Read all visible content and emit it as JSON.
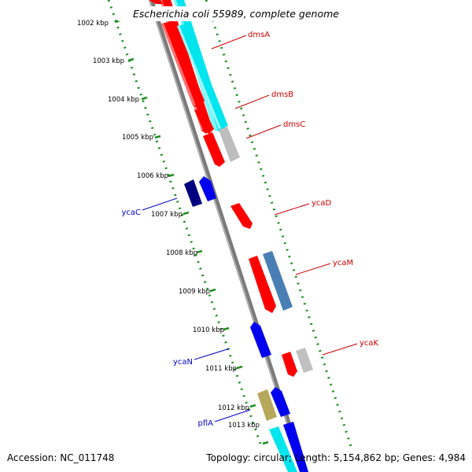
{
  "title": "Escherichia coli 55989, complete genome",
  "accession": "Accession: NC_011748",
  "topology": "Topology: circular; Length: 5,154,862 bp; Genes: 4,984",
  "colors": {
    "backbone": "#8a8a8a",
    "ticks": "#1f8f1f",
    "gene_label_red": "#cc0000",
    "gene_label_blue": "#0000cc"
  },
  "ticks": [
    "1002 kbp",
    "1003 kbp",
    "1004 kbp",
    "1005 kbp",
    "1006 kbp",
    "1007 kbp",
    "1008 kbp",
    "1009 kbp",
    "1010 kbp",
    "1011 kbp",
    "1012 kbp",
    "1013 kbp"
  ],
  "gene_labels_right": [
    "dmsA",
    "dmsB",
    "dmsC",
    "ycaD",
    "ycaM",
    "ycaK"
  ],
  "gene_labels_left": [
    "ycaC",
    "ycaN",
    "pflA"
  ]
}
